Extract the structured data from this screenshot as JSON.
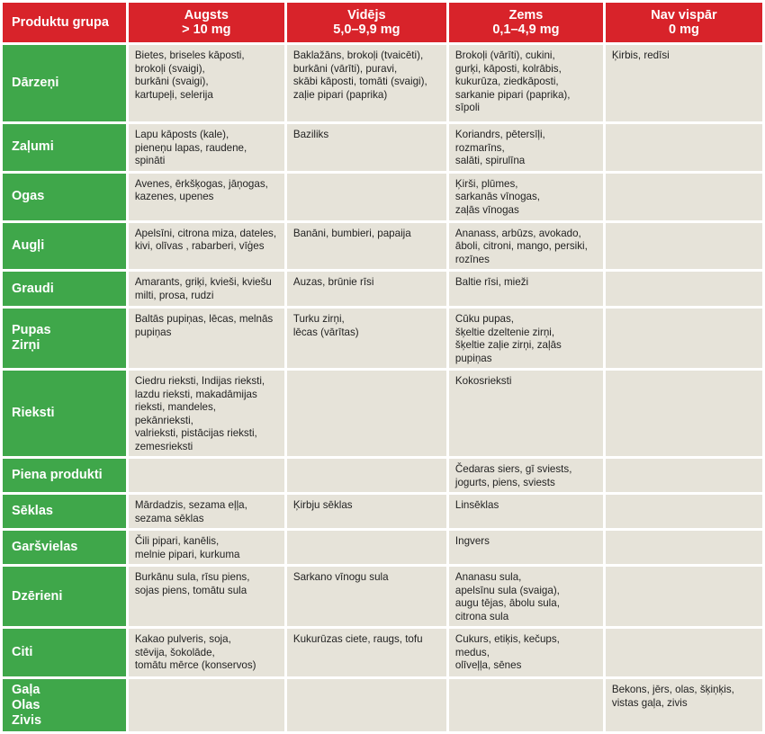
{
  "headers": [
    "Produktu grupa",
    "Augsts\n> 10 mg",
    "Vidējs\n5,0–9,9 mg",
    "Zems\n0,1–4,9 mg",
    "Nav vispār\n0 mg"
  ],
  "rows": [
    {
      "category": "Dārzeņi",
      "cells": [
        "Bietes, briseles kāposti,\nbrokoļi (svaigi),\nburkāni (svaigi),\nkartupeļi, selerija",
        "Baklažāns, brokoļi (tvaicēti),\nburkāni (vārīti), puravi,\nskābi kāposti, tomāti (svaigi),\nzaļie pipari (paprika)",
        "Brokoļi (vārīti), cukini,\ngurķi, kāposti, kolrābis,\nkukurūza, ziedkāposti,\nsarkanie pipari (paprika),\nsīpoli",
        "Ķirbis, redīsi"
      ]
    },
    {
      "category": "Zaļumi",
      "cells": [
        "Lapu kāposts (kale),\npieneņu lapas, raudene,\nspināti",
        "Baziliks",
        "Koriandrs, pētersīļi, rozmarīns,\nsalāti, spirulīna",
        ""
      ]
    },
    {
      "category": "Ogas",
      "cells": [
        "Avenes, ērkšķogas, jāņogas,\nkazenes, upenes",
        "",
        "Ķirši, plūmes,\nsarkanās vīnogas,\nzaļās vīnogas",
        ""
      ]
    },
    {
      "category": "Augļi",
      "cells": [
        "Apelsīni, citrona miza, dateles,\nkivi, olīvas , rabarberi, vīģes",
        "Banāni, bumbieri, papaija",
        "Ananass, arbūzs, avokado,\nāboli, citroni, mango, persiki,\nrozīnes",
        ""
      ]
    },
    {
      "category": "Graudi",
      "cells": [
        "Amarants, griķi, kvieši, kviešu\nmilti, prosa, rudzi",
        "Auzas, brūnie rīsi",
        "Baltie rīsi, mieži",
        ""
      ]
    },
    {
      "category": "Pupas\nZirņi",
      "cells": [
        "Baltās pupiņas, lēcas, melnās\npupiņas",
        "Turku zirņi,\nlēcas (vārītas)",
        "Cūku pupas,\nšķeltie dzeltenie zirņi,\nšķeltie zaļie zirņi, zaļās pupiņas",
        ""
      ]
    },
    {
      "category": "Rieksti",
      "cells": [
        "Ciedru rieksti, Indijas rieksti,\nlazdu rieksti, makadāmijas\nrieksti, mandeles, pekānrieksti,\nvalrieksti, pistācijas rieksti,\nzemesrieksti",
        "",
        "Kokosrieksti",
        ""
      ]
    },
    {
      "category": "Piena produkti",
      "cells": [
        "",
        "",
        "Čedaras siers, gī sviests,\njogurts, piens, sviests",
        ""
      ]
    },
    {
      "category": "Sēklas",
      "cells": [
        "Mārdadzis, sezama eļļa,\nsezama sēklas",
        "Ķirbju sēklas",
        "Linsēklas",
        ""
      ]
    },
    {
      "category": "Garšvielas",
      "cells": [
        "Čili pipari, kanēlis,\nmelnie pipari, kurkuma",
        "",
        "Ingvers",
        ""
      ]
    },
    {
      "category": "Dzērieni",
      "cells": [
        "Burkānu sula, rīsu piens,\nsojas piens, tomātu sula",
        "Sarkano vīnogu sula",
        "Ananasu sula,\napelsīnu sula (svaiga),\naugu tējas, ābolu sula,\ncitrona sula",
        ""
      ]
    },
    {
      "category": "Citi",
      "cells": [
        "Kakao pulveris, soja,\nstēvija, šokolāde,\ntomātu mērce (konservos)",
        "Kukurūzas ciete, raugs, tofu",
        "Cukurs, etiķis, kečups, medus,\nolīveļļa, sēnes",
        ""
      ]
    },
    {
      "category": "Gaļa\nOlas\nZivis",
      "cells": [
        "",
        "",
        "",
        "Bekons, jērs, olas, šķiņķis,\nvistas gaļa, zivis"
      ]
    }
  ],
  "colors": {
    "header_bg": "#d8232a",
    "category_bg": "#3fa74a",
    "cell_bg": "#e6e3d9"
  }
}
